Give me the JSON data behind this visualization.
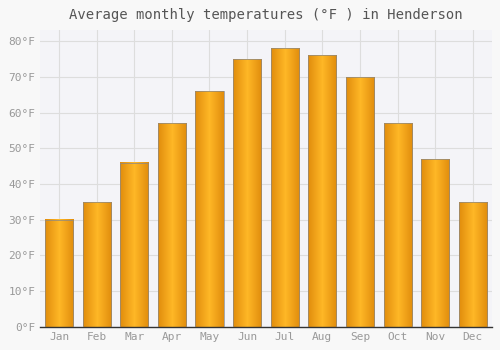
{
  "title": "Average monthly temperatures (°F ) in Henderson",
  "months": [
    "Jan",
    "Feb",
    "Mar",
    "Apr",
    "May",
    "Jun",
    "Jul",
    "Aug",
    "Sep",
    "Oct",
    "Nov",
    "Dec"
  ],
  "values": [
    30,
    35,
    46,
    57,
    66,
    75,
    78,
    76,
    70,
    57,
    47,
    35
  ],
  "bar_color_center": "#FFB726",
  "bar_color_edge": "#E8920A",
  "bar_border_color": "#888888",
  "background_color": "#F8F8F8",
  "plot_bg_color": "#F4F4F8",
  "grid_color": "#DDDDDD",
  "yticks": [
    0,
    10,
    20,
    30,
    40,
    50,
    60,
    70,
    80
  ],
  "ylim": [
    0,
    83
  ],
  "title_fontsize": 10,
  "tick_fontsize": 8,
  "tick_color": "#999999",
  "axis_color": "#BBBBBB",
  "title_color": "#555555"
}
